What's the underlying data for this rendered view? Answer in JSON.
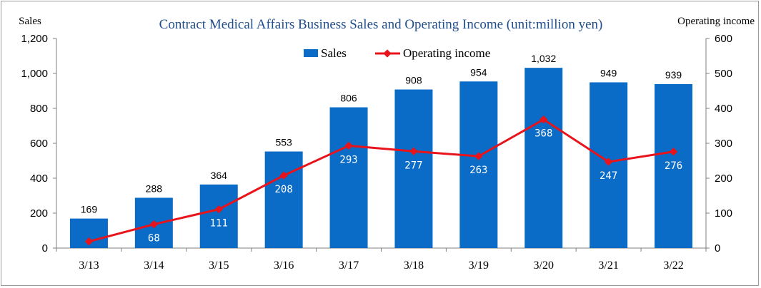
{
  "chart_data": {
    "type": "bar",
    "title": "Contract Medical Affairs Business Sales and Operating Income (unit:million yen)",
    "categories": [
      "3/13",
      "3/14",
      "3/15",
      "3/16",
      "3/17",
      "3/18",
      "3/19",
      "3/20",
      "3/21",
      "3/22"
    ],
    "series": [
      {
        "name": "Sales",
        "type": "bar",
        "axis": "left",
        "color": "#0a6cc6",
        "values": [
          169,
          288,
          364,
          553,
          806,
          908,
          954,
          1032,
          949,
          939
        ],
        "labels": [
          "169",
          "288",
          "364",
          "553",
          "806",
          "908",
          "954",
          "1,032",
          "949",
          "939"
        ]
      },
      {
        "name": "Operating income",
        "type": "line",
        "axis": "right",
        "color": "#e8131b",
        "values": [
          19,
          68,
          111,
          208,
          293,
          277,
          263,
          368,
          247,
          276
        ]
      }
    ],
    "ylabel": "Sales",
    "y2label": "Operating income",
    "ylim": [
      0,
      1200
    ],
    "y2lim": [
      0,
      600
    ],
    "yticks": [
      "0",
      "200",
      "400",
      "600",
      "800",
      "1,000",
      "1,200"
    ],
    "y2ticks": [
      "0",
      "100",
      "200",
      "300",
      "400",
      "500",
      "600"
    ],
    "legend_position": "top-center",
    "grid": false
  }
}
